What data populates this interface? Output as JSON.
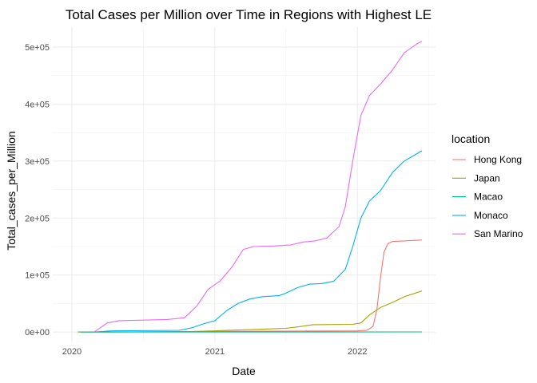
{
  "chart_data": {
    "type": "line",
    "title": "Total Cases per Million over Time in Regions with Highest LE",
    "xlabel": "Date",
    "ylabel": "Total_cases_per_Million",
    "x_ticks": [
      "2020",
      "2021",
      "2022"
    ],
    "y_ticks": [
      "0e+00",
      "1e+05",
      "2e+05",
      "3e+05",
      "4e+05",
      "5e+05"
    ],
    "y_tick_values": [
      0,
      100000,
      200000,
      300000,
      400000,
      500000
    ],
    "xlim": [
      "2019-11-13",
      "2022-07-20"
    ],
    "ylim": [
      -18000,
      535000
    ],
    "grid": true,
    "legend": {
      "title": "location",
      "placement": "right"
    },
    "series": [
      {
        "name": "Hong Kong",
        "color": "#F8766D",
        "points": [
          [
            "2020-01-23",
            0
          ],
          [
            "2020-06-01",
            200
          ],
          [
            "2021-01-01",
            1200
          ],
          [
            "2021-06-01",
            1600
          ],
          [
            "2022-01-01",
            2000
          ],
          [
            "2022-01-25",
            2800
          ],
          [
            "2022-02-10",
            10000
          ],
          [
            "2022-02-20",
            40000
          ],
          [
            "2022-03-01",
            95000
          ],
          [
            "2022-03-10",
            140000
          ],
          [
            "2022-03-20",
            155000
          ],
          [
            "2022-04-01",
            159000
          ],
          [
            "2022-05-01",
            160000
          ],
          [
            "2022-06-15",
            161500
          ]
        ]
      },
      {
        "name": "Japan",
        "color": "#A3A500",
        "points": [
          [
            "2020-01-16",
            0
          ],
          [
            "2020-04-01",
            100
          ],
          [
            "2020-08-01",
            500
          ],
          [
            "2020-11-01",
            900
          ],
          [
            "2021-01-01",
            2000
          ],
          [
            "2021-02-01",
            3000
          ],
          [
            "2021-05-01",
            5000
          ],
          [
            "2021-07-01",
            6500
          ],
          [
            "2021-08-01",
            9000
          ],
          [
            "2021-09-10",
            13000
          ],
          [
            "2021-12-20",
            13500
          ],
          [
            "2022-01-10",
            16000
          ],
          [
            "2022-02-01",
            30000
          ],
          [
            "2022-03-01",
            43000
          ],
          [
            "2022-04-01",
            52000
          ],
          [
            "2022-05-01",
            62000
          ],
          [
            "2022-06-15",
            72000
          ]
        ]
      },
      {
        "name": "Macao",
        "color": "#00BF7D",
        "points": [
          [
            "2020-01-22",
            0
          ],
          [
            "2022-06-15",
            200
          ]
        ]
      },
      {
        "name": "Monaco",
        "color": "#00B0F6",
        "points": [
          [
            "2020-02-29",
            0
          ],
          [
            "2020-03-20",
            1000
          ],
          [
            "2020-04-10",
            2000
          ],
          [
            "2020-10-01",
            3000
          ],
          [
            "2020-11-01",
            7000
          ],
          [
            "2020-12-01",
            14000
          ],
          [
            "2021-01-01",
            20000
          ],
          [
            "2021-02-01",
            38000
          ],
          [
            "2021-03-01",
            50000
          ],
          [
            "2021-04-01",
            58000
          ],
          [
            "2021-05-01",
            62000
          ],
          [
            "2021-06-15",
            64000
          ],
          [
            "2021-07-01",
            68000
          ],
          [
            "2021-08-01",
            78000
          ],
          [
            "2021-09-01",
            84000
          ],
          [
            "2021-10-01",
            85000
          ],
          [
            "2021-11-01",
            89000
          ],
          [
            "2021-12-01",
            110000
          ],
          [
            "2021-12-20",
            150000
          ],
          [
            "2022-01-10",
            200000
          ],
          [
            "2022-02-01",
            230000
          ],
          [
            "2022-03-01",
            248000
          ],
          [
            "2022-04-01",
            280000
          ],
          [
            "2022-05-01",
            300000
          ],
          [
            "2022-06-15",
            318000
          ]
        ]
      },
      {
        "name": "San Marino",
        "color": "#E76BF3",
        "points": [
          [
            "2020-02-27",
            0
          ],
          [
            "2020-03-15",
            8000
          ],
          [
            "2020-04-01",
            16000
          ],
          [
            "2020-05-01",
            20000
          ],
          [
            "2020-09-01",
            22000
          ],
          [
            "2020-10-15",
            25000
          ],
          [
            "2020-11-15",
            45000
          ],
          [
            "2020-12-15",
            75000
          ],
          [
            "2021-01-15",
            90000
          ],
          [
            "2021-02-15",
            115000
          ],
          [
            "2021-03-15",
            145000
          ],
          [
            "2021-04-10",
            150000
          ],
          [
            "2021-06-01",
            151000
          ],
          [
            "2021-07-15",
            153000
          ],
          [
            "2021-08-15",
            158000
          ],
          [
            "2021-09-15",
            160000
          ],
          [
            "2021-10-15",
            165000
          ],
          [
            "2021-11-15",
            185000
          ],
          [
            "2021-12-01",
            220000
          ],
          [
            "2021-12-20",
            300000
          ],
          [
            "2022-01-10",
            380000
          ],
          [
            "2022-02-01",
            415000
          ],
          [
            "2022-03-01",
            435000
          ],
          [
            "2022-04-01",
            460000
          ],
          [
            "2022-05-01",
            490000
          ],
          [
            "2022-06-01",
            505000
          ],
          [
            "2022-06-15",
            510000
          ]
        ]
      }
    ]
  }
}
